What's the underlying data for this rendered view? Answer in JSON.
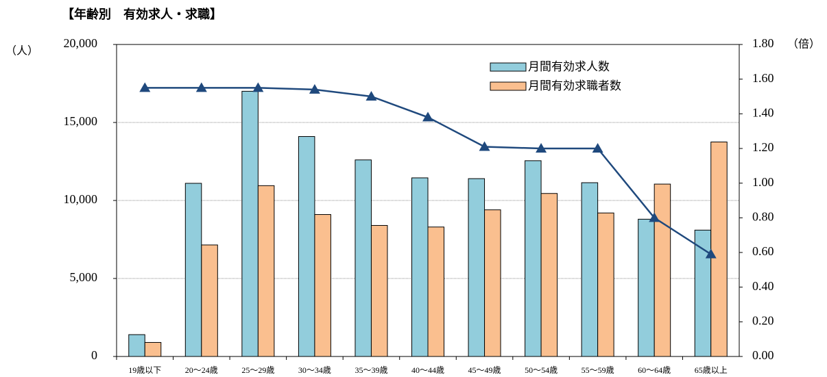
{
  "chart_data": {
    "type": "bar",
    "title": "【年齢別　有効求人・求職】",
    "y_unit": "（人）",
    "y2_unit": "（倍）",
    "categories": [
      "19歳以下",
      "20～24歳",
      "25～29歳",
      "30～34歳",
      "35～39歳",
      "40～44歳",
      "45～49歳",
      "50～54歳",
      "55～59歳",
      "60～64歳",
      "65歳以上"
    ],
    "series": [
      {
        "name": "月間有効求人数",
        "color": "#92cddc",
        "values": [
          1400,
          11100,
          17000,
          14100,
          12600,
          11450,
          11400,
          12550,
          11140,
          8800,
          8100
        ]
      },
      {
        "name": "月間有効求職者数",
        "color": "#fabf8f",
        "values": [
          900,
          7150,
          10950,
          9100,
          8400,
          8300,
          9400,
          10450,
          9200,
          11050,
          13750
        ]
      },
      {
        "type": "line",
        "axis": "y2",
        "color": "#1f497d",
        "values": [
          1.55,
          1.55,
          1.55,
          1.54,
          1.5,
          1.38,
          1.21,
          1.2,
          1.2,
          0.8,
          0.59
        ]
      }
    ],
    "ylim": [
      0,
      20000
    ],
    "yticks": [
      0,
      {
        "value": 5000,
        "label": "5,000"
      },
      {
        "value": 10000,
        "label": "10,000"
      },
      {
        "value": 15000,
        "label": "15,000"
      },
      {
        "value": 20000,
        "label": "20,000"
      }
    ],
    "y2lim": [
      0,
      1.8
    ],
    "y2ticks": [
      {
        "value": 0,
        "label": "0.00"
      },
      {
        "value": 0.2,
        "label": "0.20"
      },
      {
        "value": 0.4,
        "label": "0.40"
      },
      {
        "value": 0.6,
        "label": "0.60"
      },
      {
        "value": 0.8,
        "label": "0.80"
      },
      {
        "value": 1.0,
        "label": "1.00"
      },
      {
        "value": 1.2,
        "label": "1.20"
      },
      {
        "value": 1.4,
        "label": "1.40"
      },
      {
        "value": 1.6,
        "label": "1.60"
      },
      {
        "value": 1.8,
        "label": "1.80"
      }
    ],
    "grid": true,
    "legend": "upper right"
  }
}
